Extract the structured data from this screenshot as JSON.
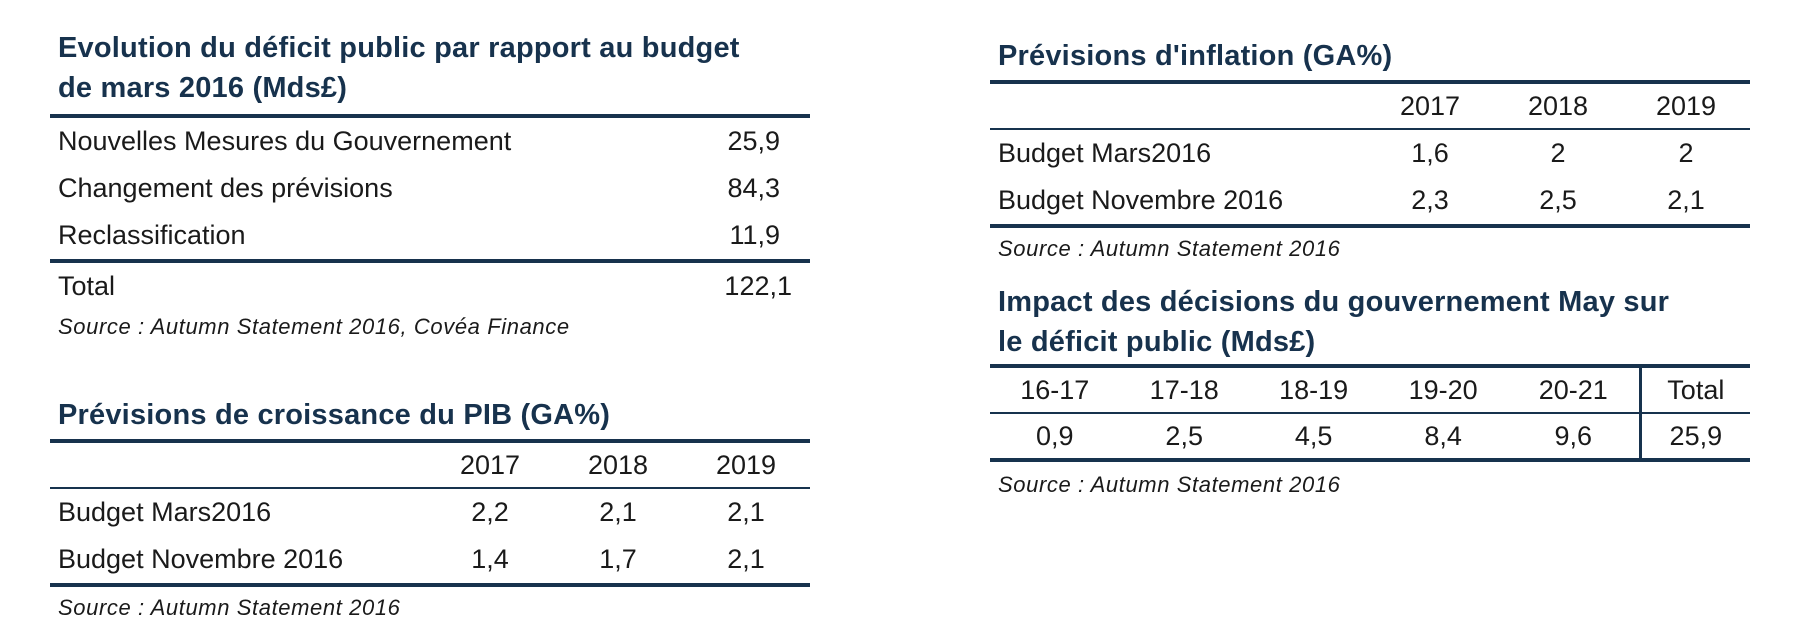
{
  "deficit": {
    "title_line1": "Evolution du déficit public par rapport au budget",
    "title_line2": "de mars 2016 (Mds£)",
    "rows": [
      {
        "label": "Nouvelles Mesures du Gouvernement",
        "value": "25,9"
      },
      {
        "label": "Changement des prévisions",
        "value": "84,3"
      },
      {
        "label": "Reclassification",
        "value": "11,9"
      }
    ],
    "total": {
      "label": "Total",
      "value": "122,1"
    },
    "source": "Source : Autumn Statement 2016, Covéa Finance"
  },
  "pib": {
    "title": "Prévisions de croissance du PIB (GA%)",
    "years": [
      "2017",
      "2018",
      "2019"
    ],
    "rows": [
      {
        "label": "Budget Mars2016",
        "values": [
          "2,2",
          "2,1",
          "2,1"
        ]
      },
      {
        "label": "Budget Novembre 2016",
        "values": [
          "1,4",
          "1,7",
          "2,1"
        ]
      }
    ],
    "source": "Source : Autumn Statement 2016"
  },
  "inflation": {
    "title": "Prévisions d'inflation (GA%)",
    "years": [
      "2017",
      "2018",
      "2019"
    ],
    "rows": [
      {
        "label": "Budget Mars2016",
        "values": [
          "1,6",
          "2",
          "2"
        ]
      },
      {
        "label": "Budget Novembre 2016",
        "values": [
          "2,3",
          "2,5",
          "2,1"
        ]
      }
    ],
    "source": "Source : Autumn Statement 2016"
  },
  "impact": {
    "title_line1": "Impact des décisions du gouvernement May sur",
    "title_line2": "le déficit public (Mds£)",
    "headers": [
      "16-17",
      "17-18",
      "18-19",
      "19-20",
      "20-21",
      "Total"
    ],
    "values": [
      "0,9",
      "2,5",
      "4,5",
      "8,4",
      "9,6",
      "25,9"
    ],
    "source": "Source : Autumn Statement 2016"
  }
}
